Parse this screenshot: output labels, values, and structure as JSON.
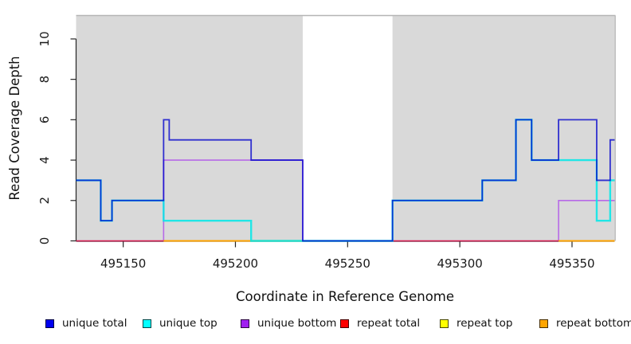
{
  "chart_data": {
    "type": "line",
    "subtype": "step",
    "title": "",
    "xlabel": "Coordinate in Reference Genome",
    "ylabel": "Read Coverage Depth",
    "x_ticks": [
      495150,
      495200,
      495250,
      495300,
      495350
    ],
    "y_ticks": [
      0,
      2,
      4,
      6,
      8,
      10
    ],
    "x_range": [
      495129,
      495369
    ],
    "y_range": [
      0,
      11.16
    ],
    "grid": "off",
    "legend_position": "bottom",
    "plot_background": "#D9D9D9",
    "figure_background": "#FFFFFF",
    "masked_region": {
      "x_start": 495230,
      "x_end": 495270,
      "color": "#FFFFFF"
    },
    "series": [
      {
        "name": "unique total",
        "legend_color": "#0000F0",
        "line_color": "#0000CC",
        "opacity": 0.78,
        "width": 1.8,
        "segments": [
          {
            "points": [
              [
                495129,
                3
              ],
              [
                495140,
                1
              ],
              [
                495145,
                2
              ],
              [
                495168,
                6
              ],
              [
                495170.5,
                5
              ],
              [
                495207,
                4
              ],
              [
                495230,
                0
              ],
              [
                495270,
                2
              ],
              [
                495310,
                3
              ],
              [
                495325,
                6
              ],
              [
                495332,
                4
              ],
              [
                495344,
                6
              ],
              [
                495361,
                3
              ],
              [
                495367,
                5
              ]
            ],
            "end": 495369
          }
        ]
      },
      {
        "name": "unique top",
        "legend_color": "#00FFFF",
        "line_color": "#00E8E8",
        "opacity": 0.85,
        "width": 2.4,
        "segments": [
          {
            "points": [
              [
                495129,
                3
              ],
              [
                495140,
                1
              ],
              [
                495145,
                2
              ],
              [
                495168,
                1
              ],
              [
                495207,
                0
              ],
              [
                495270,
                2
              ],
              [
                495310,
                3
              ],
              [
                495325,
                6
              ],
              [
                495332,
                4
              ],
              [
                495361,
                1
              ],
              [
                495367,
                3
              ]
            ],
            "end": 495369
          }
        ]
      },
      {
        "name": "unique bottom",
        "legend_color": "#A020F0",
        "line_color": "#A020F0",
        "opacity": 0.6,
        "width": 1.6,
        "segments": [
          {
            "points": [
              [
                495129,
                0
              ],
              [
                495168,
                4
              ],
              [
                495230,
                0
              ],
              [
                495344,
                2
              ]
            ],
            "end": 495369
          }
        ]
      },
      {
        "name": "repeat total",
        "legend_color": "#FF0000",
        "line_color": "#FF0000",
        "opacity": 0.62,
        "width": 1.6,
        "segments": [
          {
            "points": [
              [
                495129,
                0
              ]
            ],
            "end": 495369
          }
        ]
      },
      {
        "name": "repeat top",
        "legend_color": "#FFFF00",
        "line_color": "#FFFF00",
        "opacity": 0.9,
        "width": 1.5,
        "segments": [
          {
            "points": [
              [
                495168,
                0
              ]
            ],
            "end": 495230
          },
          {
            "points": [
              [
                495344,
                0
              ]
            ],
            "end": 495369
          }
        ]
      },
      {
        "name": "repeat bottom",
        "legend_color": "#FFA500",
        "line_color": "#FFA500",
        "opacity": 0.95,
        "width": 1.9,
        "segments": [
          {
            "points": [
              [
                495168,
                0
              ]
            ],
            "end": 495230
          },
          {
            "points": [
              [
                495344,
                0
              ]
            ],
            "end": 495369
          }
        ]
      }
    ],
    "draw_order": [
      "repeat top",
      "unique bottom",
      "repeat total",
      "repeat bottom",
      "unique top",
      "unique total"
    ],
    "axis_color": "#262626",
    "plot_border_top_color": "#B4B4B4",
    "plot_border_right_color": "#BBBBBB"
  }
}
